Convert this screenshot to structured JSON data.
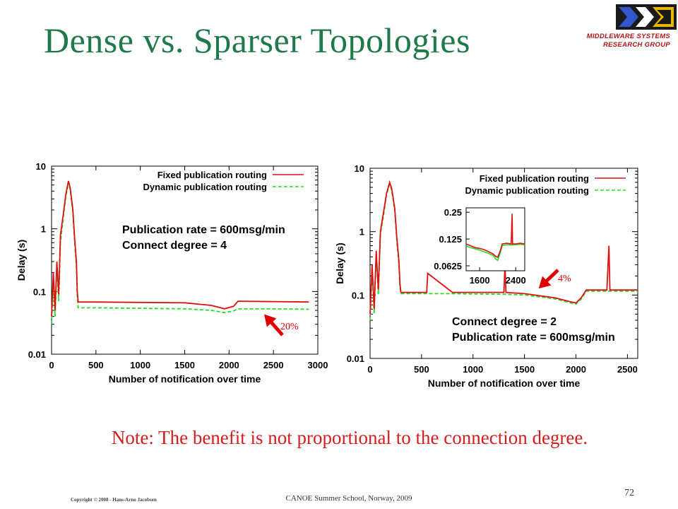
{
  "slide": {
    "title": "Dense vs. Sparser Topologies",
    "logo": {
      "line1": "MIDDLEWARE SYSTEMS",
      "line2": "RESEARCH GROUP"
    },
    "note": "Note: The benefit is not proportional to the connection degree.",
    "copyright": "Copyright © 2008 - Hans-Arno Jacobsen",
    "footer": "CANOE Summer School, Norway, 2009",
    "page_number": "72"
  },
  "colors": {
    "title": "#1f7a4a",
    "note": "#d41e1e",
    "fixed_series": "#e01010",
    "dynamic_series": "#22dd22",
    "arrow": "#e00000"
  },
  "chart_data": [
    {
      "type": "line",
      "xlabel": "Number of notification over time",
      "ylabel": "Delay (s)",
      "yscale": "log",
      "xlim": [
        0,
        3000
      ],
      "ylim": [
        0.01,
        10
      ],
      "xticks": [
        0,
        500,
        1000,
        1500,
        2000,
        2500,
        3000
      ],
      "xtick_labels": [
        "0",
        "500",
        "1000",
        "1500",
        "2000",
        "2500",
        "3000"
      ],
      "yticks": [
        0.01,
        0.1,
        1,
        10
      ],
      "ytick_labels": [
        "0.01",
        "0.1",
        "1",
        "10"
      ],
      "legend_position": "top-right",
      "annotations": [
        "Publication rate = 600msg/min",
        "Connect degree = 4"
      ],
      "callout": "20%",
      "series": [
        {
          "name": "Fixed publication routing",
          "style": "solid",
          "x": [
            0,
            20,
            40,
            60,
            80,
            100,
            130,
            160,
            190,
            210,
            240,
            260,
            280,
            290,
            300,
            500,
            1000,
            1500,
            1800,
            1950,
            2050,
            2100,
            2500,
            2900
          ],
          "y": [
            0.04,
            0.2,
            0.05,
            0.3,
            0.09,
            0.8,
            1.6,
            3.5,
            5.8,
            4.5,
            2.0,
            0.7,
            0.3,
            0.1,
            0.068,
            0.068,
            0.067,
            0.066,
            0.06,
            0.053,
            0.058,
            0.07,
            0.069,
            0.068
          ]
        },
        {
          "name": "Dynamic publication routing",
          "style": "dashed",
          "x": [
            0,
            20,
            40,
            60,
            80,
            100,
            130,
            160,
            190,
            210,
            240,
            260,
            280,
            290,
            300,
            500,
            1000,
            1500,
            1800,
            1950,
            2050,
            2100,
            2500,
            2900
          ],
          "y": [
            0.03,
            0.15,
            0.04,
            0.25,
            0.07,
            0.6,
            1.4,
            3.2,
            5.5,
            4.2,
            1.8,
            0.6,
            0.25,
            0.08,
            0.055,
            0.055,
            0.054,
            0.053,
            0.05,
            0.046,
            0.049,
            0.053,
            0.053,
            0.052
          ]
        }
      ]
    },
    {
      "type": "line",
      "xlabel": "Number of notification over time",
      "ylabel": "Delay (s)",
      "yscale": "log",
      "xlim": [
        0,
        2600
      ],
      "ylim": [
        0.01,
        10
      ],
      "xticks": [
        0,
        500,
        1000,
        1500,
        2000,
        2500
      ],
      "xtick_labels": [
        "0",
        "500",
        "1000",
        "1500",
        "2000",
        "2500"
      ],
      "yticks": [
        0.01,
        0.1,
        1,
        10
      ],
      "ytick_labels": [
        "0.01",
        "0.1",
        "1",
        "10"
      ],
      "legend_position": "top-right",
      "annotations": [
        "Connect degree = 2",
        "Publication rate = 600msg/min"
      ],
      "callout": "4%",
      "series": [
        {
          "name": "Fixed publication routing",
          "style": "solid",
          "x": [
            0,
            20,
            40,
            60,
            80,
            100,
            130,
            160,
            190,
            210,
            240,
            260,
            280,
            290,
            300,
            500,
            550,
            560,
            800,
            1000,
            1300,
            1310,
            1320,
            1500,
            1800,
            1950,
            2000,
            2050,
            2100,
            2300,
            2320,
            2330,
            2340,
            2500,
            2600
          ],
          "y": [
            0.05,
            0.3,
            0.06,
            0.5,
            0.12,
            1.0,
            2.0,
            4.0,
            6.0,
            4.8,
            2.3,
            0.8,
            0.35,
            0.15,
            0.11,
            0.11,
            0.11,
            0.22,
            0.11,
            0.11,
            0.11,
            0.3,
            0.11,
            0.105,
            0.09,
            0.078,
            0.075,
            0.09,
            0.12,
            0.12,
            0.6,
            0.12,
            0.12,
            0.12,
            0.12
          ]
        },
        {
          "name": "Dynamic publication routing",
          "style": "dashed",
          "x": [
            0,
            20,
            40,
            60,
            80,
            100,
            130,
            160,
            190,
            210,
            240,
            260,
            280,
            290,
            300,
            500,
            800,
            1000,
            1300,
            1500,
            1800,
            1950,
            2000,
            2050,
            2100,
            2300,
            2500,
            2600
          ],
          "y": [
            0.04,
            0.25,
            0.05,
            0.45,
            0.1,
            0.9,
            1.8,
            3.8,
            5.6,
            4.5,
            2.1,
            0.7,
            0.3,
            0.13,
            0.105,
            0.105,
            0.105,
            0.104,
            0.103,
            0.1,
            0.087,
            0.075,
            0.072,
            0.086,
            0.115,
            0.115,
            0.115,
            0.115
          ]
        }
      ],
      "inset": {
        "yscale": "log2",
        "xticks": [
          1600,
          2400
        ],
        "xtick_labels": [
          "1600",
          "2400"
        ],
        "xlim": [
          1300,
          2600
        ],
        "yticks": [
          0.0625,
          0.125,
          0.25
        ],
        "ytick_labels": [
          "0.0625",
          "0.125",
          "0.25"
        ],
        "ylim": [
          0.055,
          0.28
        ],
        "series": [
          {
            "name": "Fixed publication routing",
            "x": [
              1300,
              1400,
              1500,
              1600,
              1700,
              1800,
              1900,
              1950,
              2000,
              2050,
              2100,
              2200,
              2300,
              2320,
              2330,
              2400,
              2500,
              2600
            ],
            "y": [
              0.11,
              0.105,
              0.1,
              0.098,
              0.095,
              0.09,
              0.085,
              0.08,
              0.078,
              0.09,
              0.11,
              0.112,
              0.11,
              0.24,
              0.11,
              0.11,
              0.112,
              0.11
            ]
          },
          {
            "name": "Dynamic publication routing",
            "x": [
              1300,
              1400,
              1500,
              1600,
              1700,
              1800,
              1900,
              1950,
              2000,
              2050,
              2100,
              2200,
              2300,
              2400,
              2500,
              2600
            ],
            "y": [
              0.105,
              0.1,
              0.097,
              0.094,
              0.09,
              0.086,
              0.082,
              0.075,
              0.072,
              0.085,
              0.105,
              0.108,
              0.107,
              0.108,
              0.109,
              0.108
            ]
          }
        ]
      }
    }
  ]
}
